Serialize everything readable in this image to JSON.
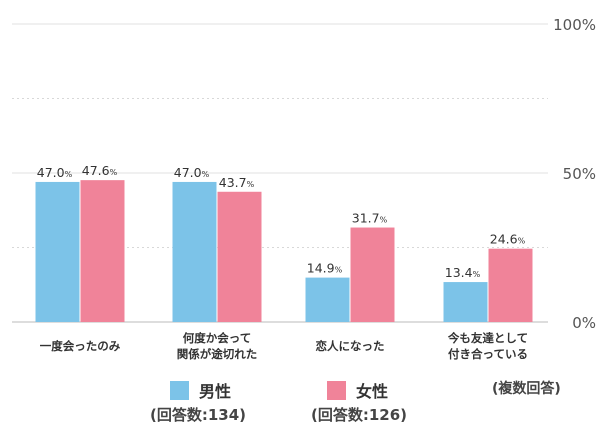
{
  "chart_data": {
    "type": "bar",
    "categories": [
      [
        "一度会ったのみ"
      ],
      [
        "何度か会って",
        "関係が途切れた"
      ],
      [
        "恋人になった"
      ],
      [
        "今も友達として",
        "付き合っている"
      ]
    ],
    "series": [
      {
        "name": "男性",
        "count_label": "(回答数:134)",
        "color": "#7cc3e8",
        "values": [
          47.0,
          47.0,
          14.9,
          13.4
        ]
      },
      {
        "name": "女性",
        "count_label": "(回答数:126)",
        "color": "#f08399",
        "values": [
          47.6,
          43.7,
          31.7,
          24.6
        ]
      }
    ],
    "ylim": [
      0,
      100
    ],
    "yticks": [
      "0%",
      "50%",
      "100%"
    ],
    "value_unit": "%",
    "grid": true,
    "note": "(複数回答)"
  }
}
